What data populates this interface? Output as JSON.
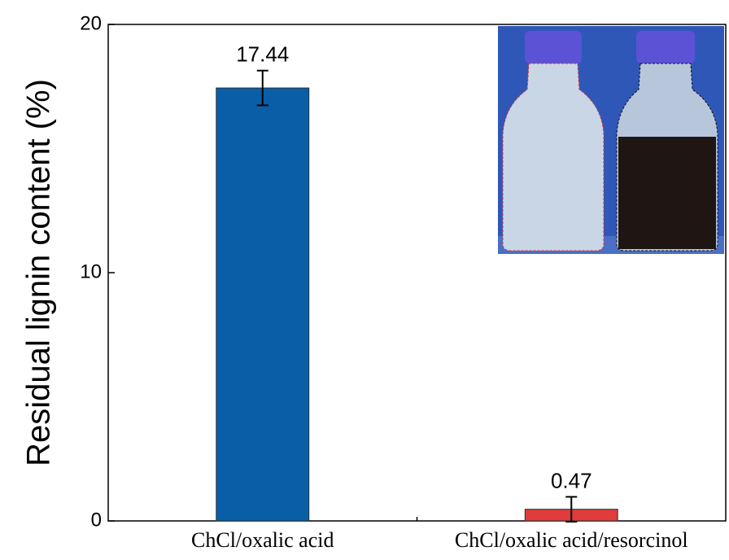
{
  "chart_data": {
    "type": "bar",
    "y_label": "Residual lignin content (%)",
    "categories": [
      "ChCl/oxalic acid",
      "ChCl/oxalic acid/resorcinol"
    ],
    "values": [
      17.44,
      0.47
    ],
    "errors": [
      0.7,
      0.5
    ],
    "colors": [
      "#0a5ea8",
      "#e03c3c"
    ],
    "ylim": [
      0,
      20
    ],
    "yticks": [
      0,
      10,
      20
    ],
    "grid": false
  }
}
